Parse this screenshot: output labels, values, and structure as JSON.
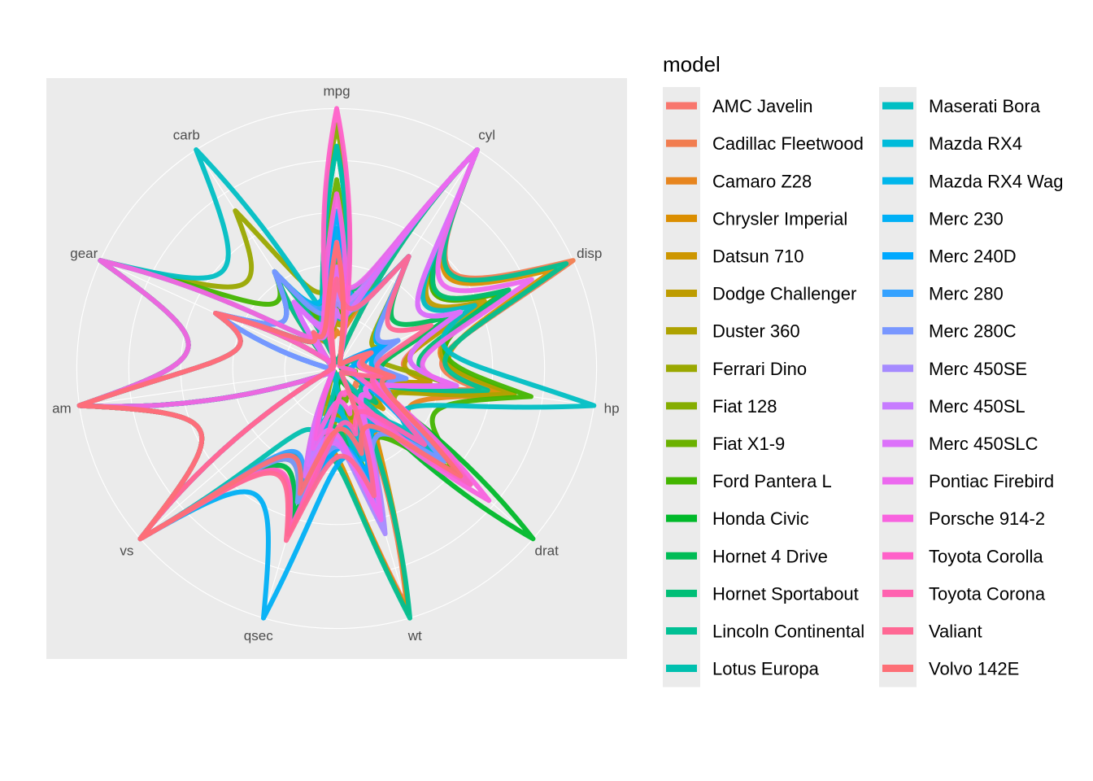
{
  "chart_data": {
    "type": "radar",
    "coord": "polar",
    "panel_background": "#ebebeb",
    "grid": true,
    "axes": [
      "mpg",
      "cyl",
      "disp",
      "hp",
      "drat",
      "wt",
      "qsec",
      "vs",
      "am",
      "gear",
      "carb"
    ],
    "scaling": "each variable rescaled to 0-1 (min-max across models)",
    "legend": {
      "title": "model",
      "position": "right",
      "columns": 2
    },
    "series": [
      {
        "name": "AMC Javelin",
        "color": "#F8766D",
        "values": [
          15.2,
          8,
          304,
          150,
          3.15,
          3.435,
          17.3,
          0,
          0,
          3,
          2
        ]
      },
      {
        "name": "Cadillac Fleetwood",
        "color": "#F17D50",
        "values": [
          10.4,
          8,
          472,
          205,
          2.93,
          5.25,
          17.98,
          0,
          0,
          3,
          4
        ]
      },
      {
        "name": "Camaro Z28",
        "color": "#E7851E",
        "values": [
          13.3,
          8,
          350,
          245,
          3.73,
          3.84,
          15.41,
          0,
          0,
          3,
          4
        ]
      },
      {
        "name": "Chrysler Imperial",
        "color": "#DB8E00",
        "values": [
          14.7,
          8,
          440,
          230,
          3.23,
          5.345,
          17.42,
          0,
          0,
          3,
          4
        ]
      },
      {
        "name": "Datsun 710",
        "color": "#CD9600",
        "values": [
          22.8,
          4,
          108,
          93,
          3.85,
          2.32,
          18.61,
          1,
          1,
          4,
          1
        ]
      },
      {
        "name": "Dodge Challenger",
        "color": "#BE9C00",
        "values": [
          15.5,
          8,
          318,
          150,
          2.76,
          3.52,
          16.87,
          0,
          0,
          3,
          2
        ]
      },
      {
        "name": "Duster 360",
        "color": "#AEA200",
        "values": [
          14.3,
          8,
          360,
          245,
          3.21,
          3.57,
          15.84,
          0,
          0,
          3,
          4
        ]
      },
      {
        "name": "Ferrari Dino",
        "color": "#9AA800",
        "values": [
          19.7,
          6,
          145,
          175,
          3.62,
          2.77,
          15.5,
          0,
          1,
          5,
          6
        ]
      },
      {
        "name": "Fiat 128",
        "color": "#85AD00",
        "values": [
          32.4,
          4,
          78.7,
          66,
          4.08,
          2.2,
          19.47,
          1,
          1,
          4,
          1
        ]
      },
      {
        "name": "Fiat X1-9",
        "color": "#6BB100",
        "values": [
          27.3,
          4,
          79,
          66,
          4.08,
          1.935,
          18.9,
          1,
          1,
          4,
          1
        ]
      },
      {
        "name": "Ford Pantera L",
        "color": "#43B500",
        "values": [
          15.8,
          8,
          351,
          264,
          4.22,
          3.17,
          14.5,
          0,
          1,
          5,
          4
        ]
      },
      {
        "name": "Honda Civic",
        "color": "#00B92A",
        "values": [
          30.4,
          4,
          75.7,
          52,
          4.93,
          1.615,
          18.52,
          1,
          1,
          4,
          2
        ]
      },
      {
        "name": "Hornet 4 Drive",
        "color": "#00BC56",
        "values": [
          21.4,
          6,
          258,
          110,
          3.08,
          3.215,
          19.44,
          1,
          0,
          3,
          1
        ]
      },
      {
        "name": "Hornet Sportabout",
        "color": "#00BE76",
        "values": [
          18.7,
          8,
          360,
          175,
          3.15,
          3.44,
          17.02,
          0,
          0,
          3,
          2
        ]
      },
      {
        "name": "Lincoln Continental",
        "color": "#00C094",
        "values": [
          10.4,
          8,
          460,
          215,
          3.0,
          5.424,
          17.82,
          0,
          0,
          3,
          4
        ]
      },
      {
        "name": "Lotus Europa",
        "color": "#00C0AF",
        "values": [
          30.4,
          4,
          95.1,
          113,
          3.77,
          1.513,
          16.9,
          1,
          1,
          5,
          2
        ]
      },
      {
        "name": "Maserati Bora",
        "color": "#00BFC4",
        "values": [
          15.0,
          8,
          301,
          335,
          3.54,
          3.57,
          14.6,
          0,
          1,
          5,
          8
        ]
      },
      {
        "name": "Mazda RX4",
        "color": "#00BBDA",
        "values": [
          21.0,
          6,
          160,
          110,
          3.9,
          2.62,
          16.46,
          0,
          1,
          4,
          4
        ]
      },
      {
        "name": "Mazda RX4 Wag",
        "color": "#00B6EB",
        "values": [
          21.0,
          6,
          160,
          110,
          3.9,
          2.875,
          17.02,
          0,
          1,
          4,
          4
        ]
      },
      {
        "name": "Merc 230",
        "color": "#00B0F6",
        "values": [
          22.8,
          4,
          140.8,
          95,
          3.92,
          3.15,
          22.9,
          1,
          0,
          4,
          2
        ]
      },
      {
        "name": "Merc 240D",
        "color": "#00A9FF",
        "values": [
          24.4,
          4,
          146.7,
          62,
          3.69,
          3.19,
          20.0,
          1,
          0,
          4,
          2
        ]
      },
      {
        "name": "Merc 280",
        "color": "#35A2FF",
        "values": [
          19.2,
          6,
          167.6,
          123,
          3.92,
          3.44,
          18.3,
          1,
          0,
          4,
          4
        ]
      },
      {
        "name": "Merc 280C",
        "color": "#7997FF",
        "values": [
          17.8,
          6,
          167.6,
          123,
          3.92,
          3.44,
          18.9,
          1,
          0,
          4,
          4
        ]
      },
      {
        "name": "Merc 450SE",
        "color": "#A58AFF",
        "values": [
          16.4,
          8,
          275.8,
          180,
          3.07,
          4.07,
          17.4,
          0,
          0,
          3,
          3
        ]
      },
      {
        "name": "Merc 450SL",
        "color": "#C77CFF",
        "values": [
          17.3,
          8,
          275.8,
          180,
          3.07,
          3.73,
          17.6,
          0,
          0,
          3,
          3
        ]
      },
      {
        "name": "Merc 450SLC",
        "color": "#DC71FA",
        "values": [
          15.2,
          8,
          275.8,
          180,
          3.07,
          3.78,
          18.0,
          0,
          0,
          3,
          3
        ]
      },
      {
        "name": "Pontiac Firebird",
        "color": "#EC69EF",
        "values": [
          19.2,
          8,
          400,
          175,
          3.08,
          3.845,
          17.05,
          0,
          0,
          3,
          2
        ]
      },
      {
        "name": "Porsche 914-2",
        "color": "#F863DF",
        "values": [
          26.0,
          4,
          120.3,
          91,
          4.43,
          2.14,
          16.7,
          0,
          1,
          5,
          2
        ]
      },
      {
        "name": "Toyota Corolla",
        "color": "#FF61C9",
        "values": [
          33.9,
          4,
          71.1,
          65,
          4.22,
          1.835,
          19.9,
          1,
          1,
          4,
          1
        ]
      },
      {
        "name": "Toyota Corona",
        "color": "#FF62B0",
        "values": [
          21.5,
          4,
          120.1,
          97,
          3.7,
          2.465,
          20.01,
          1,
          0,
          3,
          1
        ]
      },
      {
        "name": "Valiant",
        "color": "#FF6894",
        "values": [
          18.1,
          6,
          225,
          105,
          2.76,
          3.46,
          20.22,
          1,
          0,
          3,
          1
        ]
      },
      {
        "name": "Volvo 142E",
        "color": "#FD6F76",
        "values": [
          21.4,
          4,
          121,
          109,
          4.11,
          2.78,
          18.6,
          1,
          1,
          4,
          2
        ]
      }
    ]
  }
}
